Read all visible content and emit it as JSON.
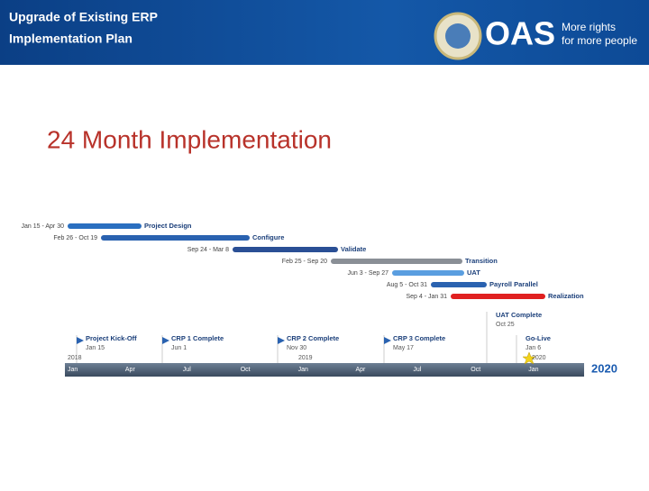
{
  "header": {
    "title": [
      "Upgrade of Existing ERP",
      "Implementation Plan"
    ],
    "logo": {
      "name": "OAS",
      "tagline": [
        "More rights",
        "for more people"
      ]
    }
  },
  "heading": "24 Month Implementation",
  "tasks": [
    {
      "name": "Project Design",
      "dates": "Jan 15 - Apr 30"
    },
    {
      "name": "Configure",
      "dates": "Feb 26 - Oct 19"
    },
    {
      "name": "Validate",
      "dates": "Sep 24 - Mar 8"
    },
    {
      "name": "Transition",
      "dates": "Feb 25 - Sep 20"
    },
    {
      "name": "UAT",
      "dates": "Jun 3 - Sep 27"
    },
    {
      "name": "Payroll Parallel",
      "dates": "Aug 5 - Oct 31"
    },
    {
      "name": "Realization",
      "dates": "Sep 4 - Jan 31"
    }
  ],
  "milestones": [
    {
      "name": "Project Kick-Off",
      "date": "Jan 15"
    },
    {
      "name": "CRP 1 Complete",
      "date": "Jun 1"
    },
    {
      "name": "CRP 2 Complete",
      "date": "Nov 30"
    },
    {
      "name": "CRP 3 Complete",
      "date": "May 17"
    },
    {
      "name": "UAT Complete",
      "date": "Oct 25"
    },
    {
      "name": "Go-Live",
      "date": "Jan 6"
    }
  ],
  "timeline": {
    "years": [
      "2018",
      "2019",
      "2020"
    ],
    "months": [
      "Jan",
      "Apr",
      "Jul",
      "Oct",
      "Jan",
      "Apr",
      "Jul",
      "Oct",
      "Jan"
    ],
    "end_year": "2020"
  }
}
